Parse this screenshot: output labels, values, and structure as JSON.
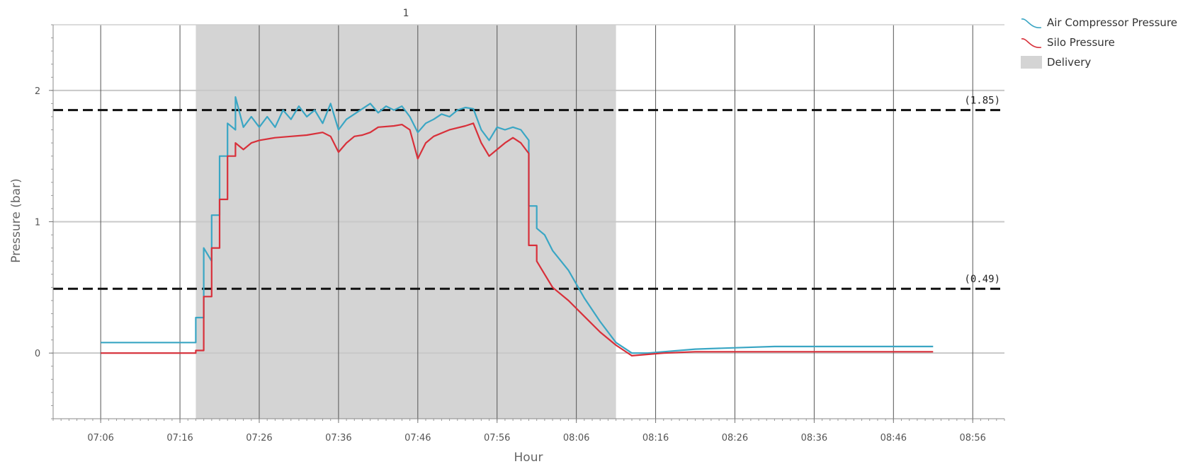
{
  "chart_data": {
    "type": "line",
    "xlabel": "Hour",
    "ylabel": "Pressure (bar)",
    "xlim": [
      "07:00",
      "09:00"
    ],
    "ylim": [
      -0.5,
      2.5
    ],
    "x_ticks": [
      "07:06",
      "07:16",
      "07:26",
      "07:36",
      "07:46",
      "07:56",
      "08:06",
      "08:16",
      "08:26",
      "08:36",
      "08:46",
      "08:56"
    ],
    "y_ticks": [
      0,
      1,
      2
    ],
    "grid": true,
    "legend_position": "top-right-outside",
    "band": {
      "name": "Delivery",
      "start": "07:18",
      "end": "08:11",
      "label": "1",
      "color": "#d4d4d4"
    },
    "reference_lines": [
      {
        "value": 1.85,
        "label": "(1.85)"
      },
      {
        "value": 0.49,
        "label": "(0.49)"
      }
    ],
    "series": [
      {
        "name": "Air Compressor Pressure",
        "color": "#3aa6c4",
        "points": [
          [
            "07:06",
            0.08
          ],
          [
            "07:18",
            0.08
          ],
          [
            "07:18",
            0.27
          ],
          [
            "07:19",
            0.27
          ],
          [
            "07:19",
            0.8
          ],
          [
            "07:20",
            0.7
          ],
          [
            "07:20",
            1.05
          ],
          [
            "07:21",
            1.05
          ],
          [
            "07:21",
            1.5
          ],
          [
            "07:22",
            1.5
          ],
          [
            "07:22",
            1.75
          ],
          [
            "07:23",
            1.7
          ],
          [
            "07:23",
            1.95
          ],
          [
            "07:24",
            1.72
          ],
          [
            "07:25",
            1.8
          ],
          [
            "07:26",
            1.72
          ],
          [
            "07:27",
            1.8
          ],
          [
            "07:28",
            1.72
          ],
          [
            "07:29",
            1.85
          ],
          [
            "07:30",
            1.78
          ],
          [
            "07:31",
            1.88
          ],
          [
            "07:32",
            1.8
          ],
          [
            "07:33",
            1.85
          ],
          [
            "07:34",
            1.75
          ],
          [
            "07:35",
            1.9
          ],
          [
            "07:36",
            1.7
          ],
          [
            "07:37",
            1.78
          ],
          [
            "07:38",
            1.82
          ],
          [
            "07:39",
            1.86
          ],
          [
            "07:40",
            1.9
          ],
          [
            "07:41",
            1.83
          ],
          [
            "07:42",
            1.88
          ],
          [
            "07:43",
            1.85
          ],
          [
            "07:44",
            1.88
          ],
          [
            "07:45",
            1.8
          ],
          [
            "07:46",
            1.68
          ],
          [
            "07:47",
            1.75
          ],
          [
            "07:48",
            1.78
          ],
          [
            "07:49",
            1.82
          ],
          [
            "07:50",
            1.8
          ],
          [
            "07:51",
            1.85
          ],
          [
            "07:52",
            1.87
          ],
          [
            "07:53",
            1.86
          ],
          [
            "07:54",
            1.7
          ],
          [
            "07:55",
            1.62
          ],
          [
            "07:56",
            1.72
          ],
          [
            "07:57",
            1.7
          ],
          [
            "07:58",
            1.72
          ],
          [
            "07:59",
            1.7
          ],
          [
            "08:00",
            1.62
          ],
          [
            "08:00",
            1.12
          ],
          [
            "08:01",
            1.12
          ],
          [
            "08:01",
            0.95
          ],
          [
            "08:02",
            0.9
          ],
          [
            "08:03",
            0.78
          ],
          [
            "08:05",
            0.63
          ],
          [
            "08:07",
            0.42
          ],
          [
            "08:09",
            0.24
          ],
          [
            "08:11",
            0.08
          ],
          [
            "08:13",
            0.0
          ],
          [
            "08:15",
            0.0
          ],
          [
            "08:17",
            0.01
          ],
          [
            "08:21",
            0.03
          ],
          [
            "08:26",
            0.04
          ],
          [
            "08:31",
            0.05
          ],
          [
            "08:36",
            0.05
          ],
          [
            "08:41",
            0.05
          ],
          [
            "08:46",
            0.05
          ],
          [
            "08:51",
            0.05
          ]
        ]
      },
      {
        "name": "Silo Pressure",
        "color": "#d8303a",
        "points": [
          [
            "07:06",
            0.0
          ],
          [
            "07:18",
            0.0
          ],
          [
            "07:18",
            0.02
          ],
          [
            "07:19",
            0.02
          ],
          [
            "07:19",
            0.43
          ],
          [
            "07:20",
            0.43
          ],
          [
            "07:20",
            0.8
          ],
          [
            "07:21",
            0.8
          ],
          [
            "07:21",
            1.17
          ],
          [
            "07:22",
            1.17
          ],
          [
            "07:22",
            1.5
          ],
          [
            "07:23",
            1.5
          ],
          [
            "07:23",
            1.6
          ],
          [
            "07:24",
            1.55
          ],
          [
            "07:25",
            1.6
          ],
          [
            "07:26",
            1.62
          ],
          [
            "07:28",
            1.64
          ],
          [
            "07:30",
            1.65
          ],
          [
            "07:32",
            1.66
          ],
          [
            "07:34",
            1.68
          ],
          [
            "07:35",
            1.65
          ],
          [
            "07:36",
            1.53
          ],
          [
            "07:37",
            1.6
          ],
          [
            "07:38",
            1.65
          ],
          [
            "07:39",
            1.66
          ],
          [
            "07:40",
            1.68
          ],
          [
            "07:41",
            1.72
          ],
          [
            "07:43",
            1.73
          ],
          [
            "07:44",
            1.74
          ],
          [
            "07:45",
            1.7
          ],
          [
            "07:46",
            1.48
          ],
          [
            "07:47",
            1.6
          ],
          [
            "07:48",
            1.65
          ],
          [
            "07:50",
            1.7
          ],
          [
            "07:52",
            1.73
          ],
          [
            "07:53",
            1.75
          ],
          [
            "07:54",
            1.6
          ],
          [
            "07:55",
            1.5
          ],
          [
            "07:56",
            1.55
          ],
          [
            "07:57",
            1.6
          ],
          [
            "07:58",
            1.64
          ],
          [
            "07:59",
            1.6
          ],
          [
            "08:00",
            1.52
          ],
          [
            "08:00",
            0.82
          ],
          [
            "08:01",
            0.82
          ],
          [
            "08:01",
            0.7
          ],
          [
            "08:02",
            0.6
          ],
          [
            "08:03",
            0.5
          ],
          [
            "08:05",
            0.4
          ],
          [
            "08:07",
            0.28
          ],
          [
            "08:09",
            0.16
          ],
          [
            "08:11",
            0.06
          ],
          [
            "08:13",
            -0.02
          ],
          [
            "08:15",
            -0.01
          ],
          [
            "08:17",
            0.0
          ],
          [
            "08:21",
            0.01
          ],
          [
            "08:26",
            0.01
          ],
          [
            "08:31",
            0.01
          ],
          [
            "08:36",
            0.01
          ],
          [
            "08:41",
            0.01
          ],
          [
            "08:46",
            0.01
          ],
          [
            "08:51",
            0.01
          ]
        ]
      }
    ]
  }
}
